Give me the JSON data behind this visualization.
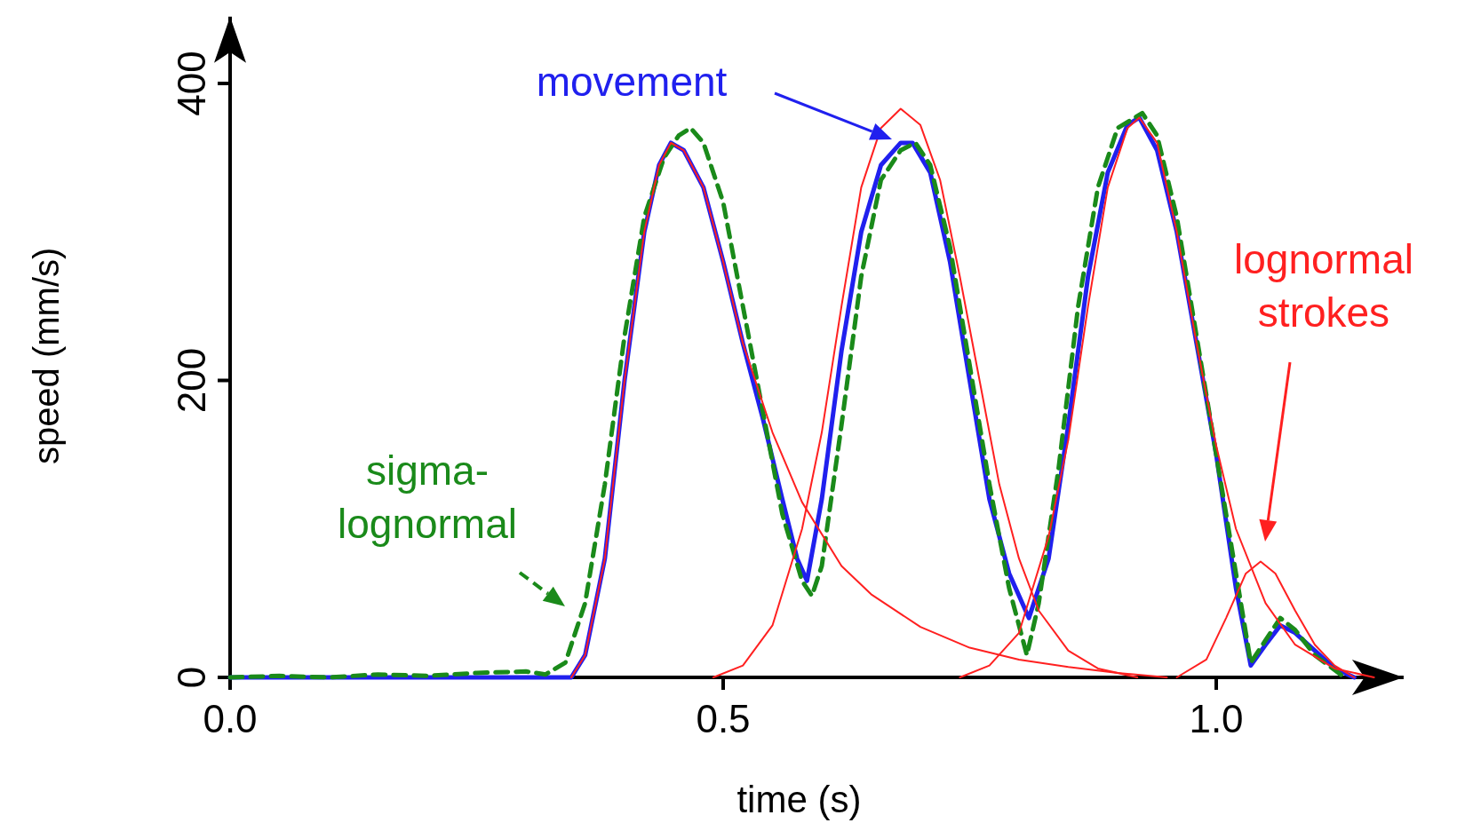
{
  "chart_data": {
    "type": "line",
    "xlabel": "time (s)",
    "ylabel": "speed (mm/s)",
    "xlim": [
      0,
      1.19
    ],
    "ylim": [
      0,
      445
    ],
    "xticks": [
      {
        "value": 0,
        "label": "0.0"
      },
      {
        "value": 0.5,
        "label": "0.5"
      },
      {
        "value": 1,
        "label": "1.0"
      }
    ],
    "yticks": [
      0,
      200,
      400
    ],
    "grid": false,
    "marker": "none",
    "annotations": [
      "movement",
      "sigma-lognormal",
      "lognormal strokes"
    ],
    "series": [
      {
        "color": "#2020ee",
        "line_style": "solid",
        "x": [
          0,
          0.346,
          0.36,
          0.38,
          0.4,
          0.42,
          0.435,
          0.447,
          0.46,
          0.48,
          0.5,
          0.52,
          0.54,
          0.56,
          0.575,
          0.585,
          0.6,
          0.62,
          0.64,
          0.66,
          0.68,
          0.692,
          0.71,
          0.73,
          0.75,
          0.77,
          0.79,
          0.81,
          0.83,
          0.85,
          0.87,
          0.89,
          0.91,
          0.922,
          0.94,
          0.96,
          0.98,
          1.0,
          1.02,
          1.035,
          1.05,
          1.065,
          1.08,
          1.1,
          1.12,
          1.14
        ],
        "values": [
          0,
          0,
          15,
          80,
          200,
          300,
          345,
          360,
          355,
          330,
          280,
          225,
          175,
          120,
          80,
          65,
          120,
          220,
          300,
          345,
          360,
          360,
          340,
          280,
          200,
          120,
          70,
          40,
          80,
          170,
          270,
          340,
          372,
          377,
          355,
          300,
          225,
          150,
          60,
          8,
          22,
          35,
          30,
          18,
          6,
          0
        ]
      },
      {
        "color": "#1a8a1a",
        "line_style": "dashed",
        "x": [
          0,
          0.05,
          0.1,
          0.15,
          0.2,
          0.25,
          0.3,
          0.32,
          0.34,
          0.36,
          0.38,
          0.4,
          0.42,
          0.44,
          0.455,
          0.467,
          0.48,
          0.5,
          0.52,
          0.54,
          0.56,
          0.58,
          0.59,
          0.6,
          0.62,
          0.64,
          0.66,
          0.68,
          0.695,
          0.71,
          0.73,
          0.75,
          0.77,
          0.79,
          0.808,
          0.82,
          0.84,
          0.86,
          0.88,
          0.9,
          0.925,
          0.94,
          0.96,
          0.98,
          1.0,
          1.02,
          1.035,
          1.05,
          1.065,
          1.08,
          1.1,
          1.13
        ],
        "values": [
          0,
          1,
          0,
          2,
          1,
          3,
          4,
          2,
          10,
          50,
          130,
          230,
          310,
          350,
          365,
          370,
          360,
          320,
          250,
          180,
          110,
          65,
          55,
          75,
          170,
          270,
          335,
          355,
          360,
          345,
          290,
          210,
          130,
          60,
          15,
          50,
          140,
          250,
          330,
          370,
          380,
          365,
          310,
          230,
          150,
          70,
          10,
          25,
          40,
          32,
          15,
          0
        ]
      },
      {
        "color": "#ff2020",
        "line_style": "solid",
        "x": [
          0.346,
          0.36,
          0.38,
          0.4,
          0.42,
          0.435,
          0.447,
          0.46,
          0.48,
          0.5,
          0.52,
          0.55,
          0.58,
          0.62,
          0.65,
          0.7,
          0.75,
          0.8,
          0.85,
          0.9,
          0.95
        ],
        "values": [
          0,
          15,
          80,
          200,
          300,
          345,
          360,
          355,
          330,
          280,
          225,
          165,
          118,
          75,
          56,
          34,
          20,
          12,
          7,
          3,
          0
        ]
      },
      {
        "color": "#ff2020",
        "line_style": "solid",
        "x": [
          0.49,
          0.52,
          0.55,
          0.58,
          0.6,
          0.62,
          0.64,
          0.66,
          0.68,
          0.7,
          0.72,
          0.74,
          0.76,
          0.78,
          0.8,
          0.82,
          0.85,
          0.88,
          0.92
        ],
        "values": [
          0,
          8,
          35,
          100,
          165,
          250,
          330,
          370,
          383,
          372,
          335,
          270,
          200,
          130,
          80,
          45,
          18,
          6,
          0
        ]
      },
      {
        "color": "#ff2020",
        "line_style": "solid",
        "x": [
          0.74,
          0.77,
          0.8,
          0.83,
          0.85,
          0.87,
          0.89,
          0.91,
          0.922,
          0.94,
          0.96,
          0.98,
          1.0,
          1.02,
          1.05,
          1.08,
          1.12,
          1.16
        ],
        "values": [
          0,
          8,
          30,
          95,
          160,
          250,
          330,
          370,
          377,
          360,
          300,
          225,
          156,
          100,
          50,
          22,
          6,
          0
        ]
      },
      {
        "color": "#ff2020",
        "line_style": "solid",
        "x": [
          0.96,
          0.99,
          1.01,
          1.03,
          1.045,
          1.06,
          1.08,
          1.1,
          1.12,
          1.14
        ],
        "values": [
          0,
          12,
          40,
          70,
          78,
          70,
          45,
          22,
          8,
          0
        ]
      }
    ]
  }
}
